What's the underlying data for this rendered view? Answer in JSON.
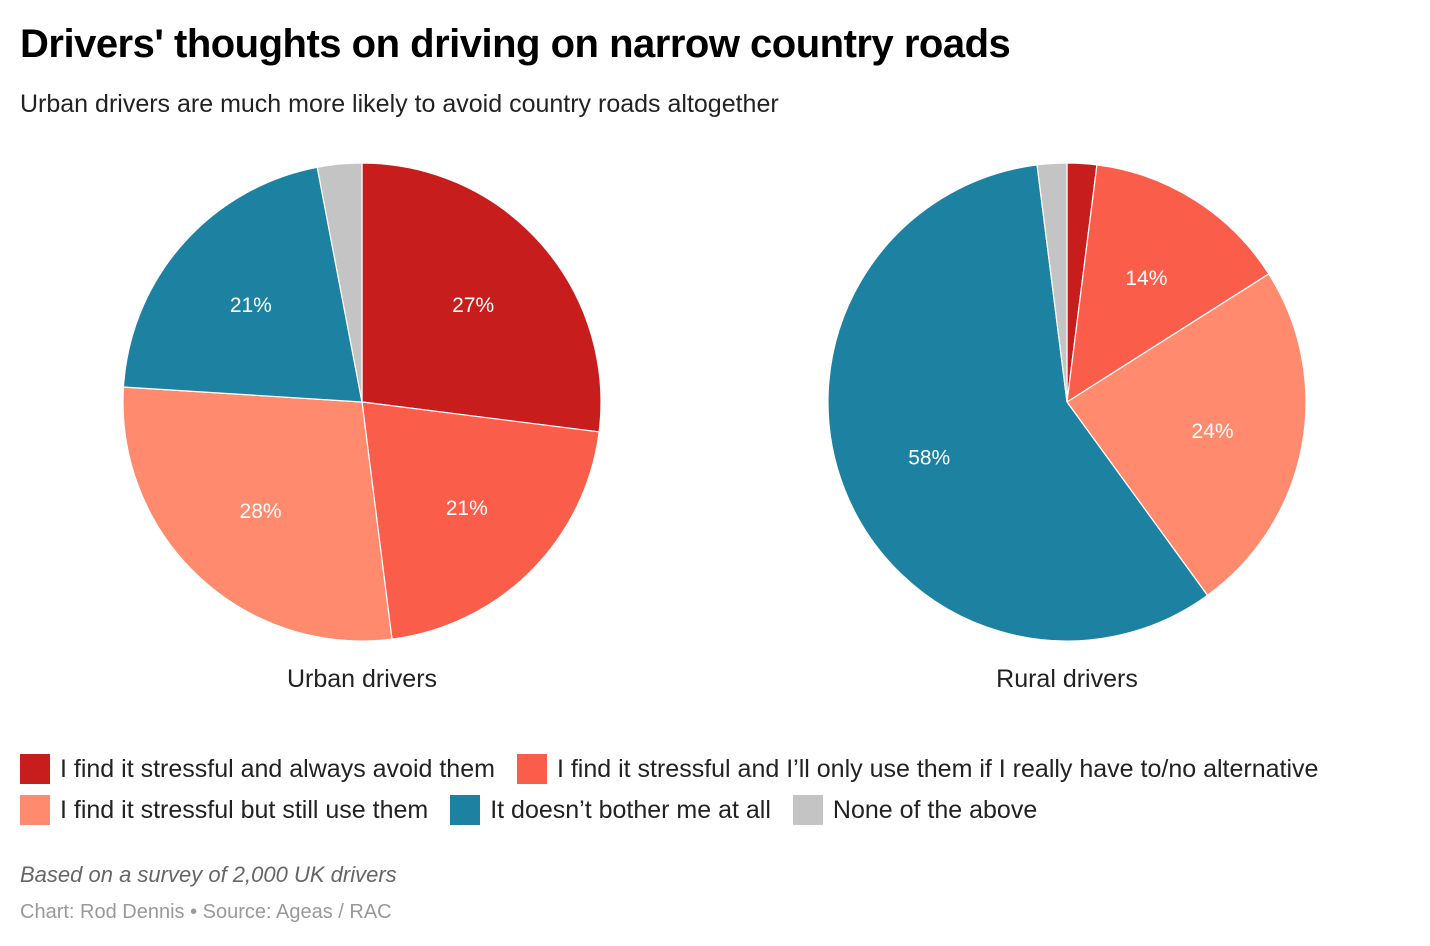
{
  "title": "Drivers' thoughts on driving on narrow country roads",
  "subtitle": "Urban drivers are much more likely to avoid country roads altogether",
  "chart_data": [
    {
      "type": "pie",
      "title": "Urban drivers",
      "categories": [
        "I find it stressful and always avoid them",
        "I find it stressful and I’ll only use them if I really have to/no alternative",
        "I find it stressful but still use them",
        "It doesn’t bother me at all",
        "None of the above"
      ],
      "values": [
        27,
        21,
        28,
        21,
        3
      ],
      "labels": [
        "27%",
        "21%",
        "28%",
        "21%",
        ""
      ]
    },
    {
      "type": "pie",
      "title": "Rural drivers",
      "categories": [
        "I find it stressful and always avoid them",
        "I find it stressful and I’ll only use them if I really have to/no alternative",
        "I find it stressful but still use them",
        "It doesn’t bother me at all",
        "None of the above"
      ],
      "values": [
        2,
        14,
        24,
        58,
        2
      ],
      "labels": [
        "",
        "14%",
        "24%",
        "58%",
        ""
      ]
    }
  ],
  "colors": [
    "#c71e1d",
    "#fa5e4a",
    "#ff8a6e",
    "#1d81a2",
    "#c4c4c4"
  ],
  "legend": [
    "I find it stressful and always avoid them",
    "I find it stressful and I’ll only use them if I really have to/no alternative",
    "I find it stressful but still use them",
    "It doesn’t bother me at all",
    "None of the above"
  ],
  "note": "Based on a survey of 2,000 UK drivers",
  "source": "Chart: Rod Dennis • Source: Ageas / RAC"
}
